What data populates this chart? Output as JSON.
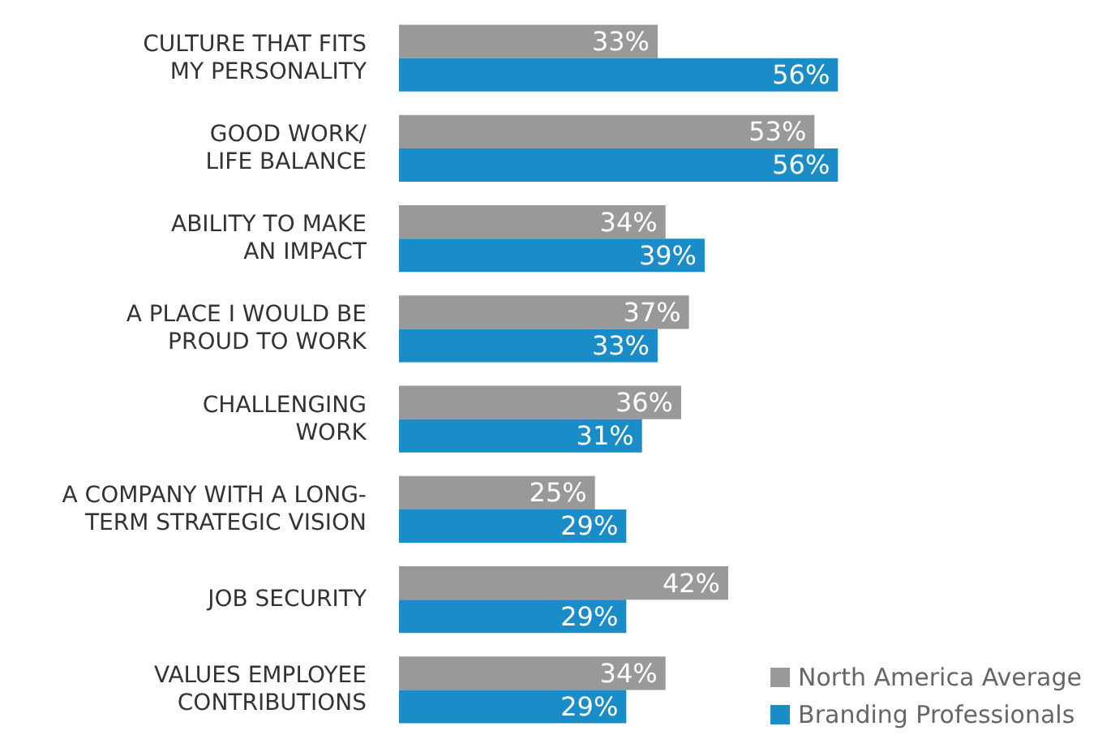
{
  "chart_data": {
    "type": "bar",
    "orientation": "horizontal",
    "categories": [
      "CULTURE THAT FITS\nMY PERSONALITY",
      "GOOD WORK/\nLIFE BALANCE",
      "ABILITY TO MAKE\nAN IMPACT",
      "A PLACE I WOULD BE\nPROUD TO WORK",
      "CHALLENGING\nWORK",
      "A COMPANY WITH A LONG-\nTERM STRATEGIC VISION",
      "JOB SECURITY",
      "VALUES EMPLOYEE\nCONTRIBUTIONS"
    ],
    "series": [
      {
        "name": "North America Average",
        "color": "#999999",
        "values": [
          33,
          53,
          34,
          37,
          36,
          25,
          42,
          34
        ],
        "value_labels": [
          "33%",
          "53%",
          "34%",
          "37%",
          "36%",
          "25%",
          "42%",
          "34%"
        ]
      },
      {
        "name": "Branding Professionals",
        "color": "#1a8cc7",
        "values": [
          56,
          56,
          39,
          33,
          31,
          29,
          29,
          29
        ],
        "value_labels": [
          "56%",
          "56%",
          "39%",
          "33%",
          "31%",
          "29%",
          "29%",
          "29%"
        ]
      }
    ],
    "legend": "bottom right",
    "grid": false
  }
}
